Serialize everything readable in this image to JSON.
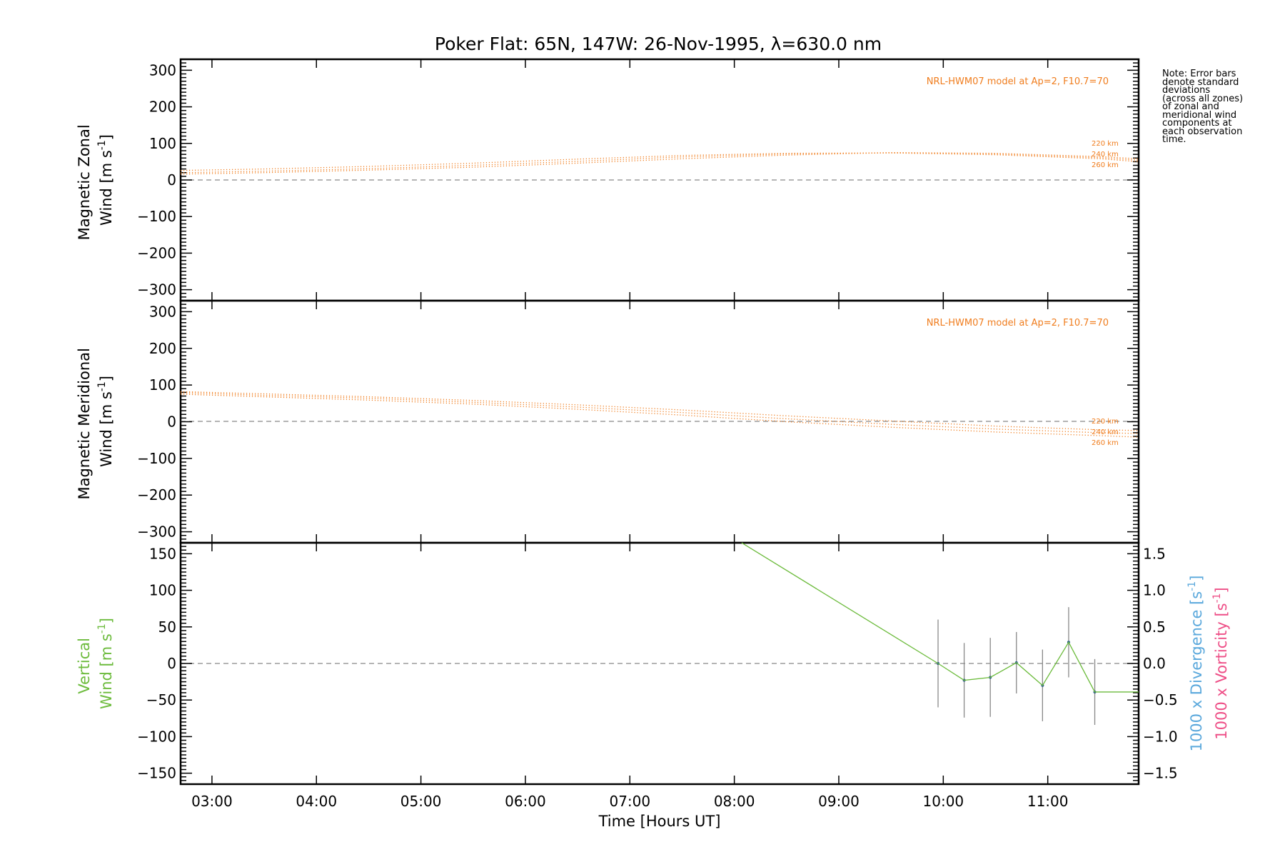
{
  "title": "Poker Flat: 65N, 147W: 26-Nov-1995, λ=630.0 nm",
  "note": "Note: Error bars\ndenote standard\ndeviations\n(across all zones)\nof zonal and\nmeridional wind\ncomponents at\neach observation\ntime.",
  "colors": {
    "model": "#f07d1e",
    "vertical": "#6cbb3c",
    "divergence": "#5aa8dc",
    "vorticity": "#ee4f87",
    "errorbar": "#888888",
    "axes": "#000000",
    "zero_line": "#888888"
  },
  "chart_data": [
    {
      "type": "line",
      "panel": "zonal",
      "ylabel_line1": "Magnetic Zonal",
      "ylabel_line2": "Wind [m s",
      "ylabel_exp": "-1",
      "ylabel_close": "]",
      "ylim": [
        -330,
        330
      ],
      "yticks": [
        300,
        200,
        100,
        0,
        -100,
        -200,
        -300
      ],
      "ytick_labels": [
        "300",
        "200",
        "100",
        "0",
        "−100",
        "−200",
        "−300"
      ],
      "model_label": "NRL-HWM07 model at Ap=2, F10.7=70",
      "series": [
        {
          "name": "220 km",
          "x": [
            2.7,
            3.5,
            4.5,
            5.5,
            6.5,
            7.5,
            8.5,
            9.5,
            10.5,
            11.5,
            11.87
          ],
          "y": [
            16,
            20,
            27,
            35,
            46,
            58,
            68,
            75,
            73,
            64,
            58
          ]
        },
        {
          "name": "240 km",
          "x": [
            2.7,
            3.5,
            4.5,
            5.5,
            6.5,
            7.5,
            8.5,
            9.5,
            10.5,
            11.5,
            11.87
          ],
          "y": [
            20,
            24,
            31,
            40,
            51,
            63,
            71,
            74,
            71,
            61,
            54
          ]
        },
        {
          "name": "260 km",
          "x": [
            2.7,
            3.5,
            4.5,
            5.5,
            6.5,
            7.5,
            8.5,
            9.5,
            10.5,
            11.5,
            11.87
          ],
          "y": [
            26,
            30,
            37,
            46,
            57,
            67,
            73,
            74,
            69,
            58,
            50
          ]
        }
      ]
    },
    {
      "type": "line",
      "panel": "meridional",
      "ylabel_line1": "Magnetic Meridional",
      "ylabel_line2": "Wind [m s",
      "ylabel_exp": "-1",
      "ylabel_close": "]",
      "ylim": [
        -330,
        330
      ],
      "yticks": [
        300,
        200,
        100,
        0,
        -100,
        -200,
        -300
      ],
      "ytick_labels": [
        "300",
        "200",
        "100",
        "0",
        "−100",
        "−200",
        "−300"
      ],
      "model_label": "NRL-HWM07 model at Ap=2, F10.7=70",
      "series": [
        {
          "name": "220 km",
          "x": [
            2.7,
            3.5,
            4.5,
            5.5,
            6.5,
            7.5,
            8.5,
            9.5,
            10.5,
            11.5,
            11.87
          ],
          "y": [
            82,
            76,
            68,
            58,
            46,
            32,
            16,
            2,
            -12,
            -22,
            -24
          ]
        },
        {
          "name": "240 km",
          "x": [
            2.7,
            3.5,
            4.5,
            5.5,
            6.5,
            7.5,
            8.5,
            9.5,
            10.5,
            11.5,
            11.87
          ],
          "y": [
            79,
            72,
            64,
            53,
            40,
            25,
            8,
            -7,
            -20,
            -30,
            -32
          ]
        },
        {
          "name": "260 km",
          "x": [
            2.7,
            3.5,
            4.5,
            5.5,
            6.5,
            7.5,
            8.5,
            9.5,
            10.5,
            11.5,
            11.87
          ],
          "y": [
            75,
            68,
            59,
            48,
            34,
            18,
            0,
            -15,
            -28,
            -38,
            -42
          ]
        }
      ]
    },
    {
      "type": "line",
      "panel": "vertical",
      "ylabel_line1": "Vertical",
      "ylabel_line2": "Wind [m s",
      "ylabel_exp": "-1",
      "ylabel_close": "]",
      "ylim": [
        -165,
        165
      ],
      "yticks": [
        150,
        100,
        50,
        0,
        -50,
        -100,
        -150
      ],
      "ytick_labels": [
        "150",
        "100",
        "50",
        "0",
        "−50",
        "−100",
        "−150"
      ],
      "right_ylim": [
        -1.65,
        1.65
      ],
      "right_yticks": [
        1.5,
        1.0,
        0.5,
        0.0,
        -0.5,
        -1.0,
        -1.5
      ],
      "right_ytick_labels": [
        "1.5",
        "1.0",
        "0.5",
        "0.0",
        "−0.5",
        "−1.0",
        "−1.5"
      ],
      "right_label_divergence": "1000 x Divergence [s",
      "right_label_vorticity": "1000 x Vorticity [s",
      "right_label_exp": "-1",
      "right_label_close": "]",
      "series": [
        {
          "name": "Vertical wind",
          "x": [
            8.07,
            9.95,
            10.2,
            10.45,
            10.7,
            10.95,
            11.2,
            11.45,
            11.87
          ],
          "y": [
            165,
            0,
            -23,
            -19,
            1,
            -30,
            29,
            -39,
            -39
          ]
        }
      ],
      "error_bars": {
        "x": [
          9.95,
          10.2,
          10.45,
          10.7,
          10.95,
          11.2,
          11.45
        ],
        "y": [
          0,
          -23,
          -19,
          1,
          -30,
          29,
          -39
        ],
        "err": [
          60,
          51,
          54,
          42,
          49,
          48,
          45
        ]
      }
    }
  ],
  "x_axis": {
    "xlim": [
      2.7,
      11.87
    ],
    "ticks": [
      3,
      4,
      5,
      6,
      7,
      8,
      9,
      10,
      11
    ],
    "tick_labels": [
      "03:00",
      "04:00",
      "05:00",
      "06:00",
      "07:00",
      "08:00",
      "09:00",
      "10:00",
      "11:00"
    ],
    "label": "Time [Hours UT]"
  }
}
